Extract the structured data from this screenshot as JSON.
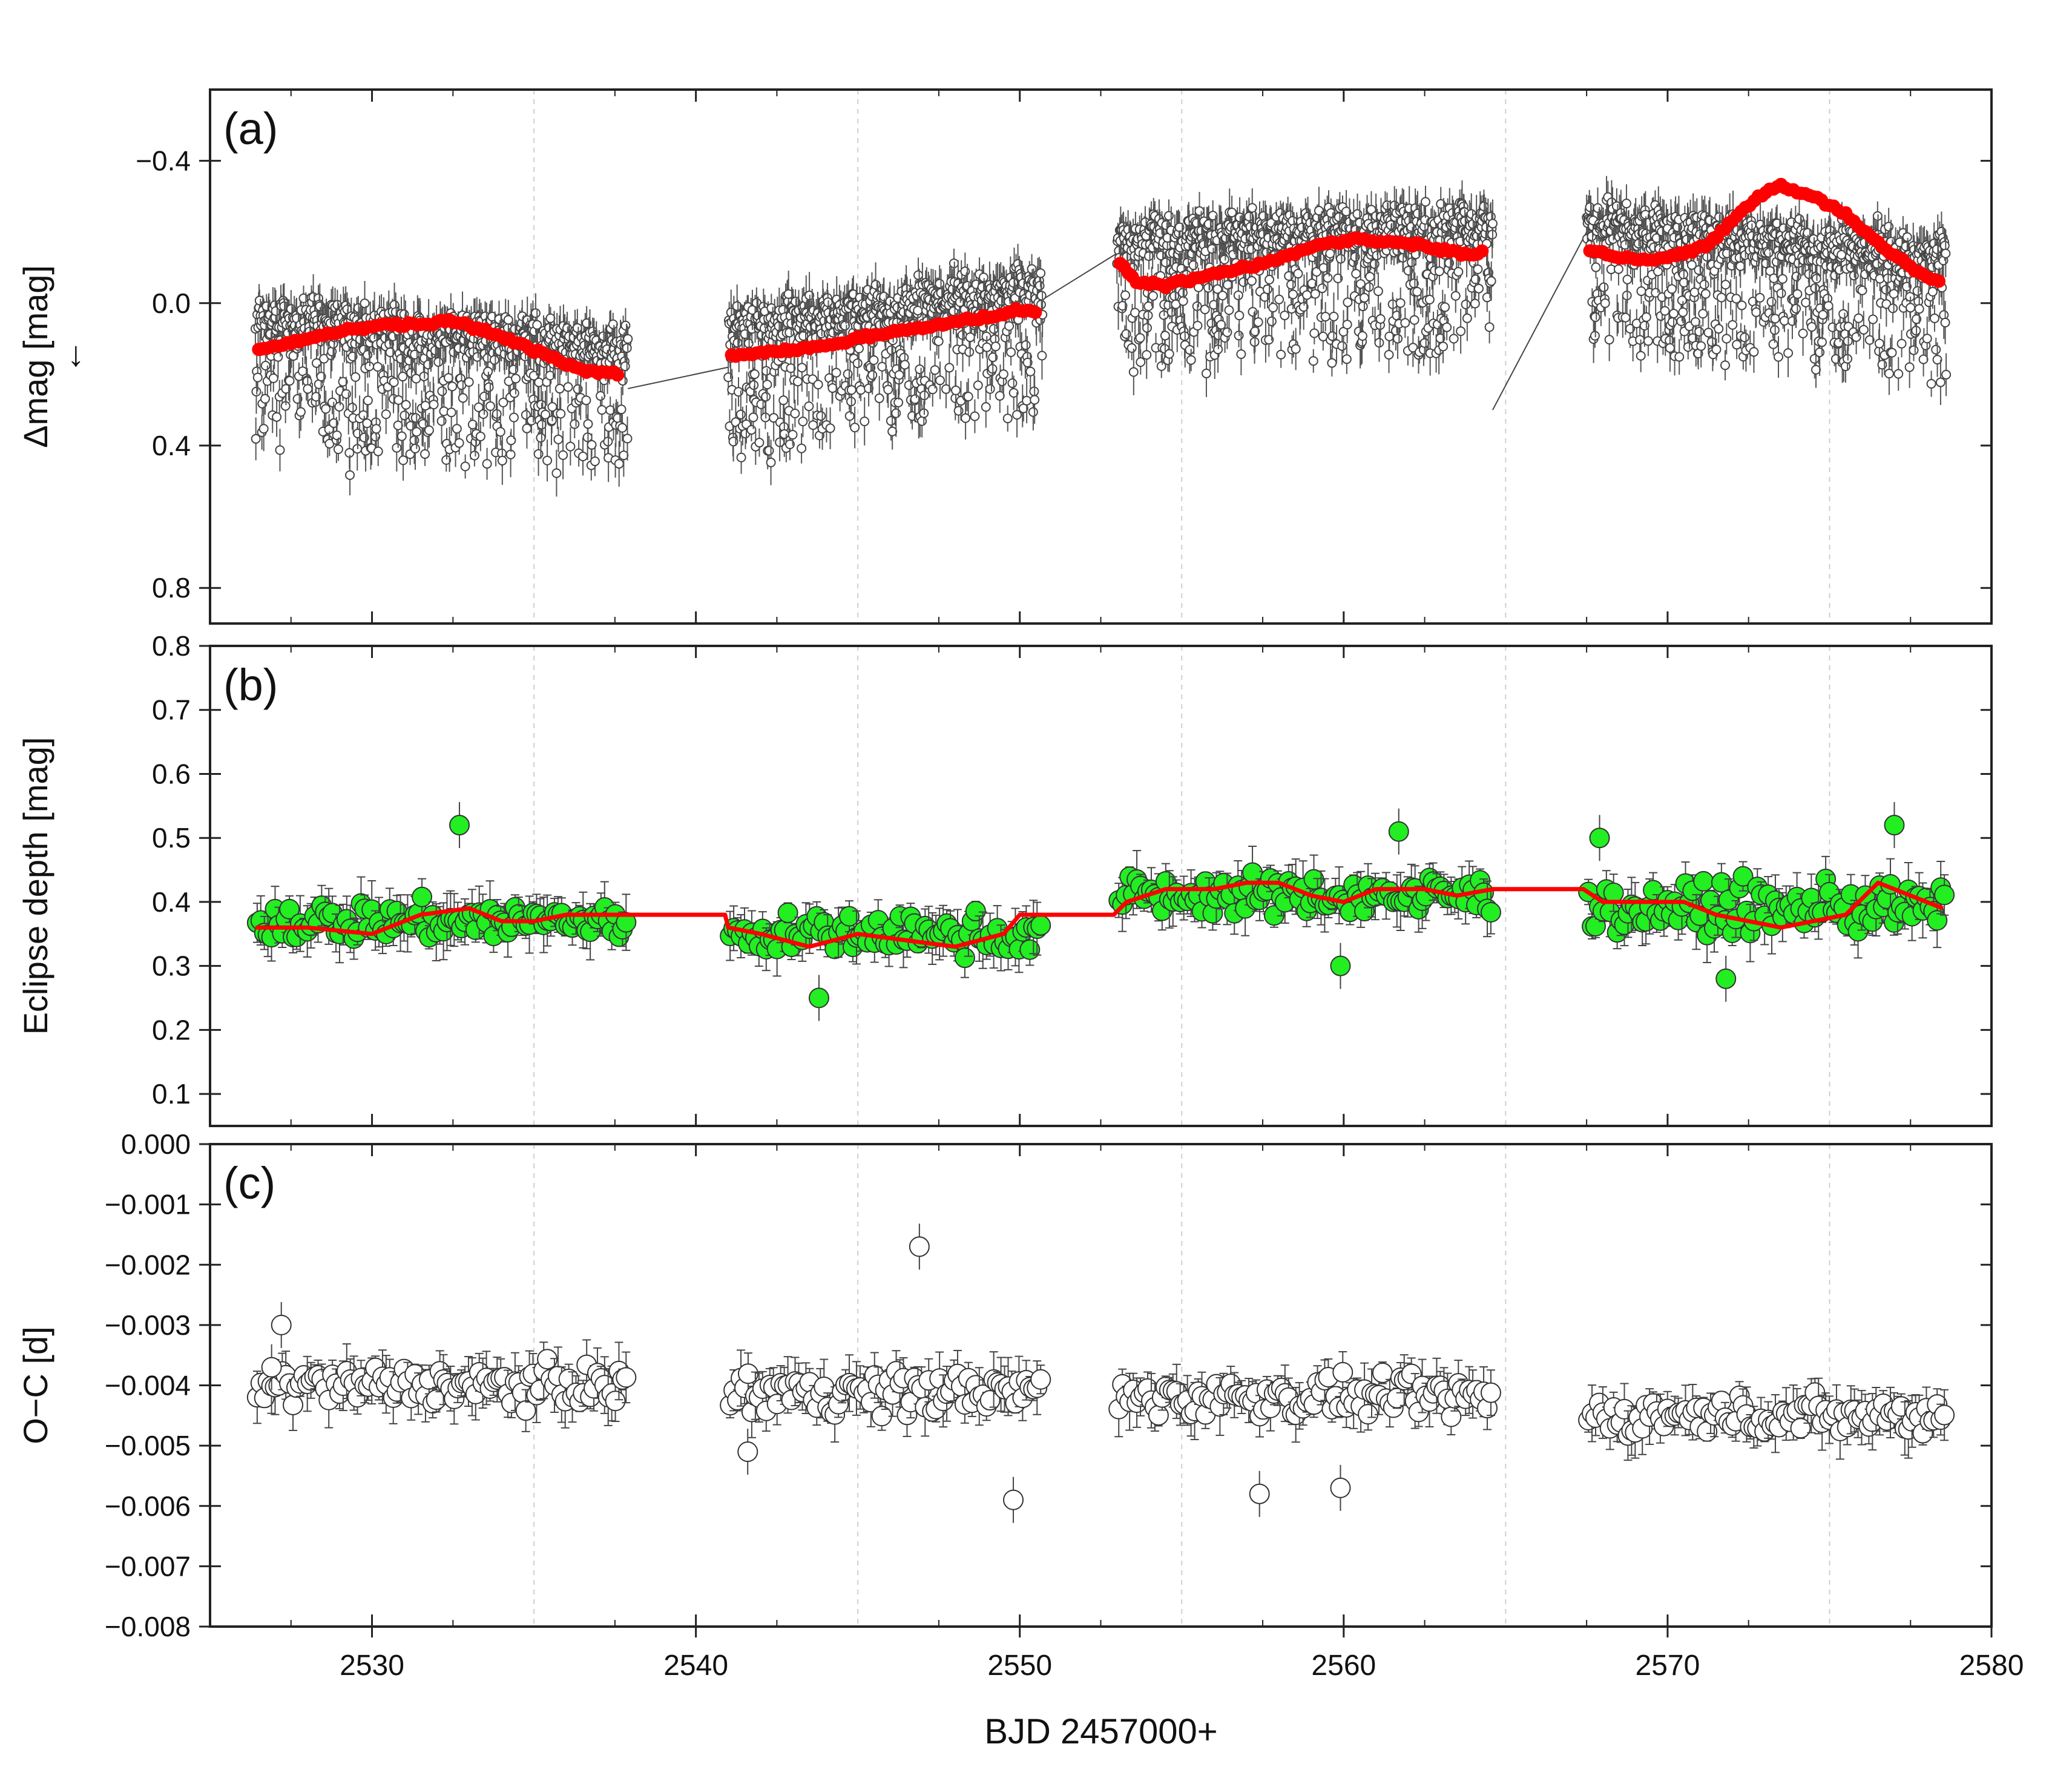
{
  "figure": {
    "xlabel": "BJD 2457000+",
    "xlim": [
      2525,
      2580
    ],
    "xticks": [
      2530,
      2540,
      2550,
      2560,
      2570,
      2580
    ]
  },
  "chart_data": [
    {
      "panel": "a",
      "panel_label": "(a)",
      "type": "scatter",
      "ylabel": "Δmag [mag]",
      "ylabel_arrow": "←",
      "ylim": [
        -0.6,
        0.9
      ],
      "y_inverted": true,
      "yticks": [
        -0.4,
        0.0,
        0.4,
        0.8
      ],
      "ytick_labels": [
        "−0.4",
        "0.0",
        "0.4",
        "0.8"
      ],
      "grid": "dashed vertical at 2535, 2545, 2555, 2565, 2575",
      "segments": [
        {
          "x_start": 2526.4,
          "x_end": 2537.9,
          "mean_start": 0.12,
          "mean_end": 0.2,
          "scatter": 0.25
        },
        {
          "x_start": 2541.0,
          "x_end": 2550.7,
          "mean_start": 0.15,
          "mean_end": 0.03,
          "scatter": 0.25
        },
        {
          "x_start": 2553.0,
          "x_end": 2564.6,
          "mean_start": -0.1,
          "mean_end": -0.14,
          "scatter": 0.27
        },
        {
          "x_start": 2567.5,
          "x_end": 2578.6,
          "mean_start": -0.15,
          "mean_end": -0.05,
          "scatter": 0.25
        }
      ],
      "connector_lines": [
        {
          "x1": 2537.9,
          "y1": 0.24,
          "x2": 2541.0,
          "y2": 0.18
        },
        {
          "x1": 2550.7,
          "y1": -0.01,
          "x2": 2553.0,
          "y2": -0.14
        },
        {
          "x1": 2564.6,
          "y1": 0.3,
          "x2": 2567.5,
          "y2": -0.2
        }
      ],
      "smooth_series": {
        "name": "binned mean",
        "color": "#ff0000",
        "points": [
          [
            2526.5,
            0.13
          ],
          [
            2527.5,
            0.11
          ],
          [
            2528.5,
            0.09
          ],
          [
            2529.5,
            0.07
          ],
          [
            2530.5,
            0.06
          ],
          [
            2531.5,
            0.06
          ],
          [
            2532.5,
            0.05
          ],
          [
            2533.5,
            0.08
          ],
          [
            2534.5,
            0.11
          ],
          [
            2535.5,
            0.15
          ],
          [
            2536.5,
            0.19
          ],
          [
            2537.7,
            0.2
          ],
          [
            2541.1,
            0.15
          ],
          [
            2542.0,
            0.14
          ],
          [
            2543.0,
            0.13
          ],
          [
            2544.0,
            0.12
          ],
          [
            2545.0,
            0.1
          ],
          [
            2546.0,
            0.08
          ],
          [
            2547.0,
            0.07
          ],
          [
            2548.0,
            0.05
          ],
          [
            2549.0,
            0.04
          ],
          [
            2550.0,
            0.02
          ],
          [
            2550.6,
            0.03
          ],
          [
            2553.1,
            -0.11
          ],
          [
            2553.6,
            -0.06
          ],
          [
            2554.5,
            -0.05
          ],
          [
            2555.5,
            -0.07
          ],
          [
            2556.5,
            -0.09
          ],
          [
            2557.5,
            -0.11
          ],
          [
            2558.5,
            -0.14
          ],
          [
            2559.5,
            -0.17
          ],
          [
            2560.5,
            -0.18
          ],
          [
            2561.5,
            -0.17
          ],
          [
            2562.5,
            -0.16
          ],
          [
            2563.5,
            -0.14
          ],
          [
            2564.4,
            -0.14
          ],
          [
            2567.6,
            -0.15
          ],
          [
            2568.5,
            -0.13
          ],
          [
            2569.5,
            -0.12
          ],
          [
            2570.5,
            -0.14
          ],
          [
            2571.3,
            -0.17
          ],
          [
            2572.0,
            -0.23
          ],
          [
            2572.8,
            -0.3
          ],
          [
            2573.5,
            -0.33
          ],
          [
            2574.5,
            -0.3
          ],
          [
            2575.5,
            -0.25
          ],
          [
            2576.5,
            -0.17
          ],
          [
            2577.5,
            -0.1
          ],
          [
            2578.5,
            -0.05
          ]
        ]
      }
    },
    {
      "panel": "b",
      "panel_label": "(b)",
      "type": "scatter",
      "ylabel": "Eclipse depth [mag]",
      "ylim": [
        0.05,
        0.8
      ],
      "yticks": [
        0.1,
        0.2,
        0.3,
        0.4,
        0.5,
        0.6,
        0.7,
        0.8
      ],
      "ytick_labels": [
        "0.1",
        "0.2",
        "0.3",
        "0.4",
        "0.5",
        "0.6",
        "0.7",
        "0.8"
      ],
      "marker_color": "#22ee22",
      "segments": [
        {
          "x_start": 2526.4,
          "x_end": 2537.9,
          "mean": 0.37,
          "scatter": 0.05
        },
        {
          "x_start": 2541.0,
          "x_end": 2550.7,
          "mean": 0.35,
          "scatter": 0.05
        },
        {
          "x_start": 2553.0,
          "x_end": 2564.6,
          "mean": 0.41,
          "scatter": 0.05
        },
        {
          "x_start": 2567.5,
          "x_end": 2578.6,
          "mean": 0.39,
          "scatter": 0.06
        }
      ],
      "highlight_points": [
        [
          2532.7,
          0.52
        ],
        [
          2543.8,
          0.25
        ],
        [
          2559.9,
          0.3
        ],
        [
          2561.7,
          0.51
        ],
        [
          2567.9,
          0.5
        ],
        [
          2577.0,
          0.52
        ],
        [
          2571.8,
          0.28
        ]
      ],
      "smooth_series": {
        "name": "trend",
        "color": "#ff0000",
        "points": [
          [
            2526.4,
            0.36
          ],
          [
            2528.0,
            0.36
          ],
          [
            2530.0,
            0.35
          ],
          [
            2531.5,
            0.38
          ],
          [
            2533.0,
            0.39
          ],
          [
            2534.0,
            0.37
          ],
          [
            2535.0,
            0.37
          ],
          [
            2536.0,
            0.38
          ],
          [
            2537.5,
            0.38
          ],
          [
            2539.0,
            0.38
          ],
          [
            2540.9,
            0.38
          ],
          [
            2541.0,
            0.36
          ],
          [
            2542.0,
            0.35
          ],
          [
            2543.5,
            0.33
          ],
          [
            2545.0,
            0.35
          ],
          [
            2546.5,
            0.34
          ],
          [
            2548.0,
            0.33
          ],
          [
            2549.5,
            0.35
          ],
          [
            2550.0,
            0.38
          ],
          [
            2551.5,
            0.38
          ],
          [
            2552.9,
            0.38
          ],
          [
            2553.3,
            0.4
          ],
          [
            2554.5,
            0.42
          ],
          [
            2556.0,
            0.42
          ],
          [
            2557.0,
            0.43
          ],
          [
            2558.0,
            0.43
          ],
          [
            2559.0,
            0.41
          ],
          [
            2560.0,
            0.4
          ],
          [
            2561.0,
            0.42
          ],
          [
            2562.5,
            0.42
          ],
          [
            2563.5,
            0.41
          ],
          [
            2564.6,
            0.42
          ],
          [
            2567.4,
            0.42
          ],
          [
            2568.0,
            0.4
          ],
          [
            2569.0,
            0.4
          ],
          [
            2570.5,
            0.4
          ],
          [
            2571.5,
            0.38
          ],
          [
            2572.5,
            0.37
          ],
          [
            2573.5,
            0.36
          ],
          [
            2574.5,
            0.37
          ],
          [
            2575.5,
            0.38
          ],
          [
            2576.5,
            0.43
          ],
          [
            2577.5,
            0.41
          ],
          [
            2578.5,
            0.39
          ]
        ]
      }
    },
    {
      "panel": "c",
      "panel_label": "(c)",
      "type": "scatter",
      "ylabel": "O−C [d]",
      "ylim": [
        -0.008,
        0.0
      ],
      "yticks": [
        0.0,
        -0.001,
        -0.002,
        -0.003,
        -0.004,
        -0.005,
        -0.006,
        -0.007,
        -0.008
      ],
      "ytick_labels": [
        "0.000",
        "−0.001",
        "−0.002",
        "−0.003",
        "−0.004",
        "−0.005",
        "−0.006",
        "−0.007",
        "−0.008"
      ],
      "marker_color": "#ffffff",
      "segments": [
        {
          "x_start": 2526.4,
          "x_end": 2537.9,
          "mean": -0.004,
          "scatter": 0.0005
        },
        {
          "x_start": 2541.0,
          "x_end": 2550.7,
          "mean": -0.0041,
          "scatter": 0.0006
        },
        {
          "x_start": 2553.0,
          "x_end": 2564.6,
          "mean": -0.0042,
          "scatter": 0.0005
        },
        {
          "x_start": 2567.5,
          "x_end": 2578.6,
          "mean": -0.0045,
          "scatter": 0.0005
        }
      ],
      "highlight_points": [
        [
          2546.9,
          -0.0017
        ],
        [
          2549.8,
          -0.0059
        ],
        [
          2557.4,
          -0.0058
        ],
        [
          2559.9,
          -0.0057
        ],
        [
          2541.6,
          -0.0051
        ],
        [
          2526.9,
          -0.0037
        ],
        [
          2527.2,
          -0.003
        ]
      ]
    }
  ]
}
